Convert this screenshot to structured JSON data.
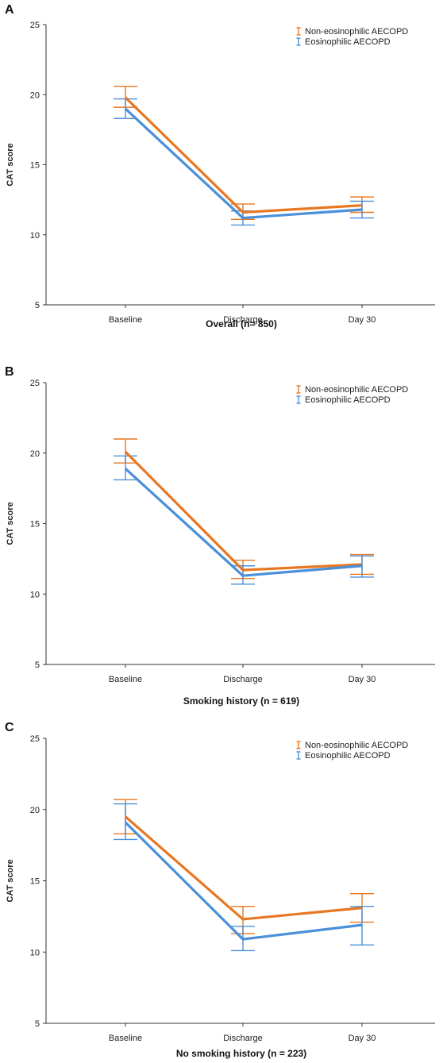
{
  "colors": {
    "orange": "#E87722",
    "blue": "#4A90D9"
  },
  "chart_data": [
    {
      "panel": "A",
      "type": "line",
      "title": "Overall (n= 850)",
      "xlabel": "",
      "ylabel": "CAT score",
      "categories": [
        "Baseline",
        "Discharge",
        "Day 30"
      ],
      "yticks": [
        5,
        10,
        15,
        20,
        25
      ],
      "ylim": [
        5,
        25
      ],
      "legend_position": "top-right",
      "series": [
        {
          "name": "Non-eosinophilic AECOPD",
          "color": "#E87722",
          "values": [
            19.8,
            11.6,
            12.1
          ],
          "err_low": [
            19.1,
            11.1,
            11.6
          ],
          "err_high": [
            20.6,
            12.2,
            12.7
          ]
        },
        {
          "name": "Eosinophilic AECOPD",
          "color": "#4A90D9",
          "values": [
            19.0,
            11.2,
            11.8
          ],
          "err_low": [
            18.3,
            10.7,
            11.2
          ],
          "err_high": [
            19.7,
            11.7,
            12.4
          ]
        }
      ]
    },
    {
      "panel": "B",
      "type": "line",
      "title": "Smoking history (n = 619)",
      "xlabel": "",
      "ylabel": "CAT score",
      "categories": [
        "Baseline",
        "Discharge",
        "Day 30"
      ],
      "yticks": [
        5,
        10,
        15,
        20,
        25
      ],
      "ylim": [
        5,
        25
      ],
      "legend_position": "top-right",
      "series": [
        {
          "name": "Non-eosinophilic AECOPD",
          "color": "#E87722",
          "values": [
            20.1,
            11.7,
            12.1
          ],
          "err_low": [
            19.3,
            11.1,
            11.4
          ],
          "err_high": [
            21.0,
            12.4,
            12.8
          ]
        },
        {
          "name": "Eosinophilic AECOPD",
          "color": "#4A90D9",
          "values": [
            18.9,
            11.3,
            12.0
          ],
          "err_low": [
            18.1,
            10.7,
            11.2
          ],
          "err_high": [
            19.8,
            12.0,
            12.7
          ]
        }
      ]
    },
    {
      "panel": "C",
      "type": "line",
      "title": "No smoking history (n = 223)",
      "xlabel": "",
      "ylabel": "CAT score",
      "categories": [
        "Baseline",
        "Discharge",
        "Day 30"
      ],
      "yticks": [
        5,
        10,
        15,
        20,
        25
      ],
      "ylim": [
        5,
        25
      ],
      "legend_position": "top-right",
      "series": [
        {
          "name": "Non-eosinophilic AECOPD",
          "color": "#E87722",
          "values": [
            19.5,
            12.3,
            13.1
          ],
          "err_low": [
            18.3,
            11.3,
            12.1
          ],
          "err_high": [
            20.7,
            13.2,
            14.1
          ]
        },
        {
          "name": "Eosinophilic AECOPD",
          "color": "#4A90D9",
          "values": [
            19.1,
            10.9,
            11.9
          ],
          "err_low": [
            17.9,
            10.1,
            10.5
          ],
          "err_high": [
            20.4,
            11.8,
            13.2
          ]
        }
      ]
    }
  ]
}
